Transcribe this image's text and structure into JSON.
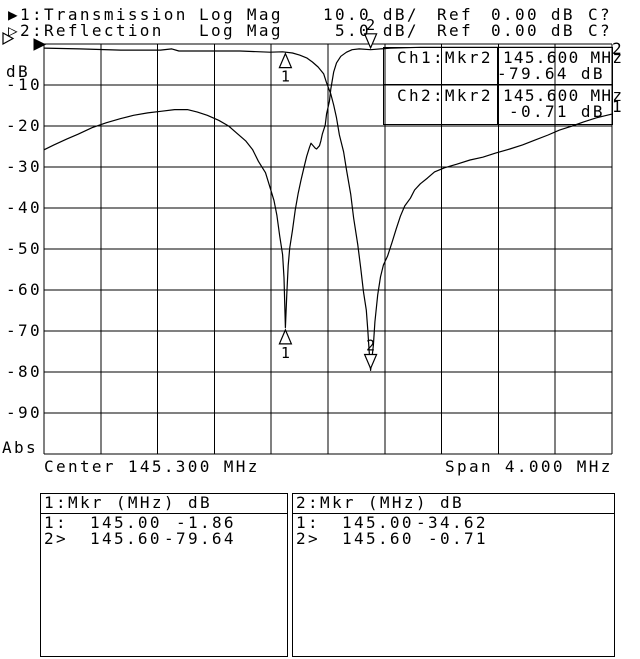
{
  "header": {
    "ch1": {
      "title": "▶1:Transmission",
      "format": "Log Mag",
      "scale": "10.0 dB/",
      "ref_label": "Ref",
      "ref_value": "0.00 dB",
      "cal_status": "C?"
    },
    "ch2": {
      "title": "▷2:Reflection",
      "format": "Log Mag",
      "scale": "5.0 dB/",
      "ref_label": "Ref",
      "ref_value": "0.00 dB",
      "cal_status": "C?"
    }
  },
  "y_axis": {
    "unit": "dB",
    "abs_label": "Abs",
    "ticks": [
      "-10",
      "-20",
      "-30",
      "-40",
      "-50",
      "-60",
      "-70",
      "-80",
      "-90"
    ]
  },
  "x_axis": {
    "center_label": "Center 145.300 MHz",
    "span_label": "Span 4.000 MHz"
  },
  "info_box": {
    "row1": {
      "label": "Ch1:Mkr2",
      "freq": "145.600 MHz",
      "value": "-79.64 dB"
    },
    "row2": {
      "label": "Ch2:Mkr2",
      "freq": "145.600 MHz",
      "value": "-0.71 dB"
    }
  },
  "trace_end_labels": {
    "trace1": "1",
    "trace2": "2"
  },
  "marker_table": {
    "ch1": {
      "title": "1:Mkr (MHz)",
      "unit_header": "dB",
      "rows": [
        {
          "id": "1:",
          "freq": "145.00",
          "value": "-1.86"
        },
        {
          "id": "2>",
          "freq": "145.60",
          "value": "-79.64"
        }
      ]
    },
    "ch2": {
      "title": "2:Mkr (MHz)",
      "unit_header": "dB",
      "rows": [
        {
          "id": "1:",
          "freq": "145.00",
          "value": "-34.62"
        },
        {
          "id": "2>",
          "freq": "145.60",
          "value": "-0.71"
        }
      ]
    }
  },
  "colors": {
    "foreground": "#000000",
    "background": "#ffffff"
  },
  "chart_data": {
    "type": "line",
    "title": "",
    "x_axis": {
      "unit": "MHz",
      "center_mhz": 145.3,
      "span_mhz": 4.0,
      "min": 143.3,
      "max": 147.3
    },
    "y_axis": {
      "unit": "dB",
      "divisions": 10,
      "ticks": [
        -10,
        -20,
        -30,
        -40,
        -50,
        -60,
        -70,
        -80,
        -90
      ],
      "grid": true
    },
    "series": [
      {
        "name": "1:Transmission",
        "format": "Log Mag",
        "scale_db_per_div": 10,
        "ref_db": 0.0,
        "points": [
          [
            143.3,
            -1.0
          ],
          [
            143.55,
            -1.2
          ],
          [
            143.84,
            -1.5
          ],
          [
            144.12,
            -1.5
          ],
          [
            144.2,
            -1.2
          ],
          [
            144.25,
            -1.7
          ],
          [
            144.4,
            -1.7
          ],
          [
            144.68,
            -1.7
          ],
          [
            144.89,
            -2.0
          ],
          [
            144.98,
            -1.9
          ],
          [
            145.05,
            -2.2
          ],
          [
            145.1,
            -2.7
          ],
          [
            145.15,
            -3.4
          ],
          [
            145.19,
            -4.4
          ],
          [
            145.23,
            -5.6
          ],
          [
            145.27,
            -7.3
          ],
          [
            145.29,
            -9.5
          ],
          [
            145.32,
            -12.2
          ],
          [
            145.34,
            -14.9
          ],
          [
            145.36,
            -18.0
          ],
          [
            145.38,
            -22.2
          ],
          [
            145.41,
            -26.3
          ],
          [
            145.43,
            -30.7
          ],
          [
            145.46,
            -36.6
          ],
          [
            145.48,
            -42.4
          ],
          [
            145.51,
            -49.0
          ],
          [
            145.53,
            -54.6
          ],
          [
            145.55,
            -60.5
          ],
          [
            145.57,
            -64.9
          ],
          [
            145.58,
            -69.8
          ],
          [
            145.59,
            -75.1
          ],
          [
            145.6,
            -79.6
          ],
          [
            145.62,
            -73.4
          ],
          [
            145.63,
            -67.8
          ],
          [
            145.65,
            -61.2
          ],
          [
            145.67,
            -56.8
          ],
          [
            145.69,
            -53.9
          ],
          [
            145.72,
            -51.7
          ],
          [
            145.75,
            -48.5
          ],
          [
            145.78,
            -45.1
          ],
          [
            145.81,
            -42.0
          ],
          [
            145.84,
            -39.5
          ],
          [
            145.88,
            -37.6
          ],
          [
            145.91,
            -35.6
          ],
          [
            145.95,
            -34.1
          ],
          [
            146.0,
            -32.7
          ],
          [
            146.05,
            -31.2
          ],
          [
            146.12,
            -30.2
          ],
          [
            146.21,
            -29.3
          ],
          [
            146.3,
            -28.3
          ],
          [
            146.39,
            -27.6
          ],
          [
            146.48,
            -26.6
          ],
          [
            146.58,
            -25.6
          ],
          [
            146.67,
            -24.6
          ],
          [
            146.76,
            -23.4
          ],
          [
            146.85,
            -22.2
          ],
          [
            146.93,
            -21.0
          ],
          [
            147.02,
            -20.0
          ],
          [
            147.1,
            -19.0
          ],
          [
            147.19,
            -18.0
          ],
          [
            147.3,
            -17.1
          ]
        ]
      },
      {
        "name": "2:Reflection",
        "format": "Log Mag",
        "scale_db_per_div": 5,
        "ref_db": 0.0,
        "points": [
          [
            143.3,
            -12.9
          ],
          [
            143.37,
            -12.3
          ],
          [
            143.46,
            -11.6
          ],
          [
            143.54,
            -11.0
          ],
          [
            143.64,
            -10.2
          ],
          [
            143.74,
            -9.6
          ],
          [
            143.84,
            -9.1
          ],
          [
            143.93,
            -8.7
          ],
          [
            144.03,
            -8.4
          ],
          [
            144.13,
            -8.2
          ],
          [
            144.22,
            -8.0
          ],
          [
            144.31,
            -8.0
          ],
          [
            144.38,
            -8.3
          ],
          [
            144.45,
            -8.7
          ],
          [
            144.53,
            -9.3
          ],
          [
            144.6,
            -10.0
          ],
          [
            144.66,
            -10.9
          ],
          [
            144.72,
            -11.8
          ],
          [
            144.77,
            -12.9
          ],
          [
            144.81,
            -14.3
          ],
          [
            144.86,
            -15.7
          ],
          [
            144.89,
            -17.4
          ],
          [
            144.92,
            -19.1
          ],
          [
            144.94,
            -20.9
          ],
          [
            144.96,
            -23.4
          ],
          [
            144.98,
            -25.7
          ],
          [
            144.99,
            -28.5
          ],
          [
            145.0,
            -34.6
          ],
          [
            145.01,
            -30.5
          ],
          [
            145.02,
            -27.0
          ],
          [
            145.03,
            -24.9
          ],
          [
            145.05,
            -22.7
          ],
          [
            145.07,
            -20.2
          ],
          [
            145.09,
            -18.2
          ],
          [
            145.11,
            -16.6
          ],
          [
            145.13,
            -15.1
          ],
          [
            145.15,
            -13.7
          ],
          [
            145.17,
            -12.6
          ],
          [
            145.18,
            -12.1
          ],
          [
            145.19,
            -12.3
          ],
          [
            145.21,
            -12.7
          ],
          [
            145.22,
            -12.8
          ],
          [
            145.24,
            -12.4
          ],
          [
            145.25,
            -11.8
          ],
          [
            145.26,
            -11.0
          ],
          [
            145.28,
            -9.9
          ],
          [
            145.29,
            -8.5
          ],
          [
            145.31,
            -7.0
          ],
          [
            145.32,
            -5.5
          ],
          [
            145.34,
            -3.4
          ],
          [
            145.36,
            -2.3
          ],
          [
            145.39,
            -1.5
          ],
          [
            145.43,
            -1.0
          ],
          [
            145.47,
            -0.7
          ],
          [
            145.52,
            -0.6
          ],
          [
            145.6,
            -0.7
          ],
          [
            145.74,
            -0.5
          ],
          [
            145.95,
            -0.4
          ],
          [
            146.23,
            -0.4
          ],
          [
            146.51,
            -0.4
          ],
          [
            146.86,
            -0.4
          ],
          [
            147.3,
            -0.4
          ]
        ]
      }
    ],
    "markers": [
      {
        "series": 0,
        "label": "1",
        "freq_mhz": 145.0,
        "db": -1.86,
        "direction": "up"
      },
      {
        "series": 0,
        "label": "2",
        "freq_mhz": 145.6,
        "db": -79.64,
        "direction": "down"
      },
      {
        "series": 1,
        "label": "1",
        "freq_mhz": 145.0,
        "db": -34.62,
        "direction": "up"
      },
      {
        "series": 1,
        "label": "2",
        "freq_mhz": 145.6,
        "db": -0.71,
        "direction": "down"
      }
    ]
  }
}
